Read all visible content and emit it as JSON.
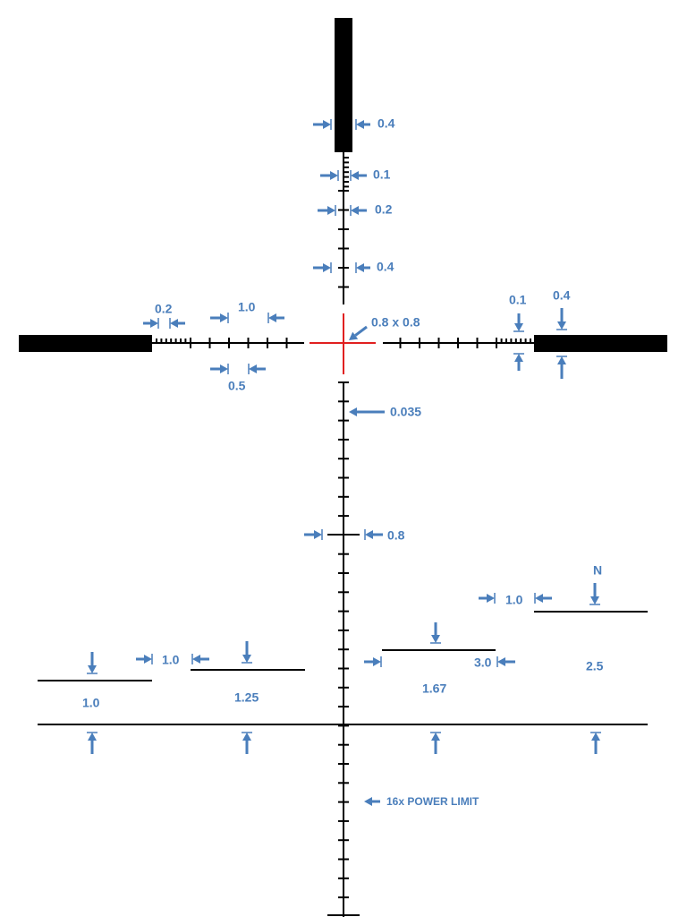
{
  "labels": [
    "0.4",
    "0.1",
    "0.2",
    "0.4",
    "0.2",
    "1.0",
    "0.1",
    "0.4",
    "0.8 x 0.8",
    "0.5",
    "0.035",
    "0.8",
    "N",
    "1.0",
    "1.0",
    "3.0",
    "2.5",
    "1.67",
    "1.0",
    "1.25",
    "16x POWER LIMIT"
  ]
}
